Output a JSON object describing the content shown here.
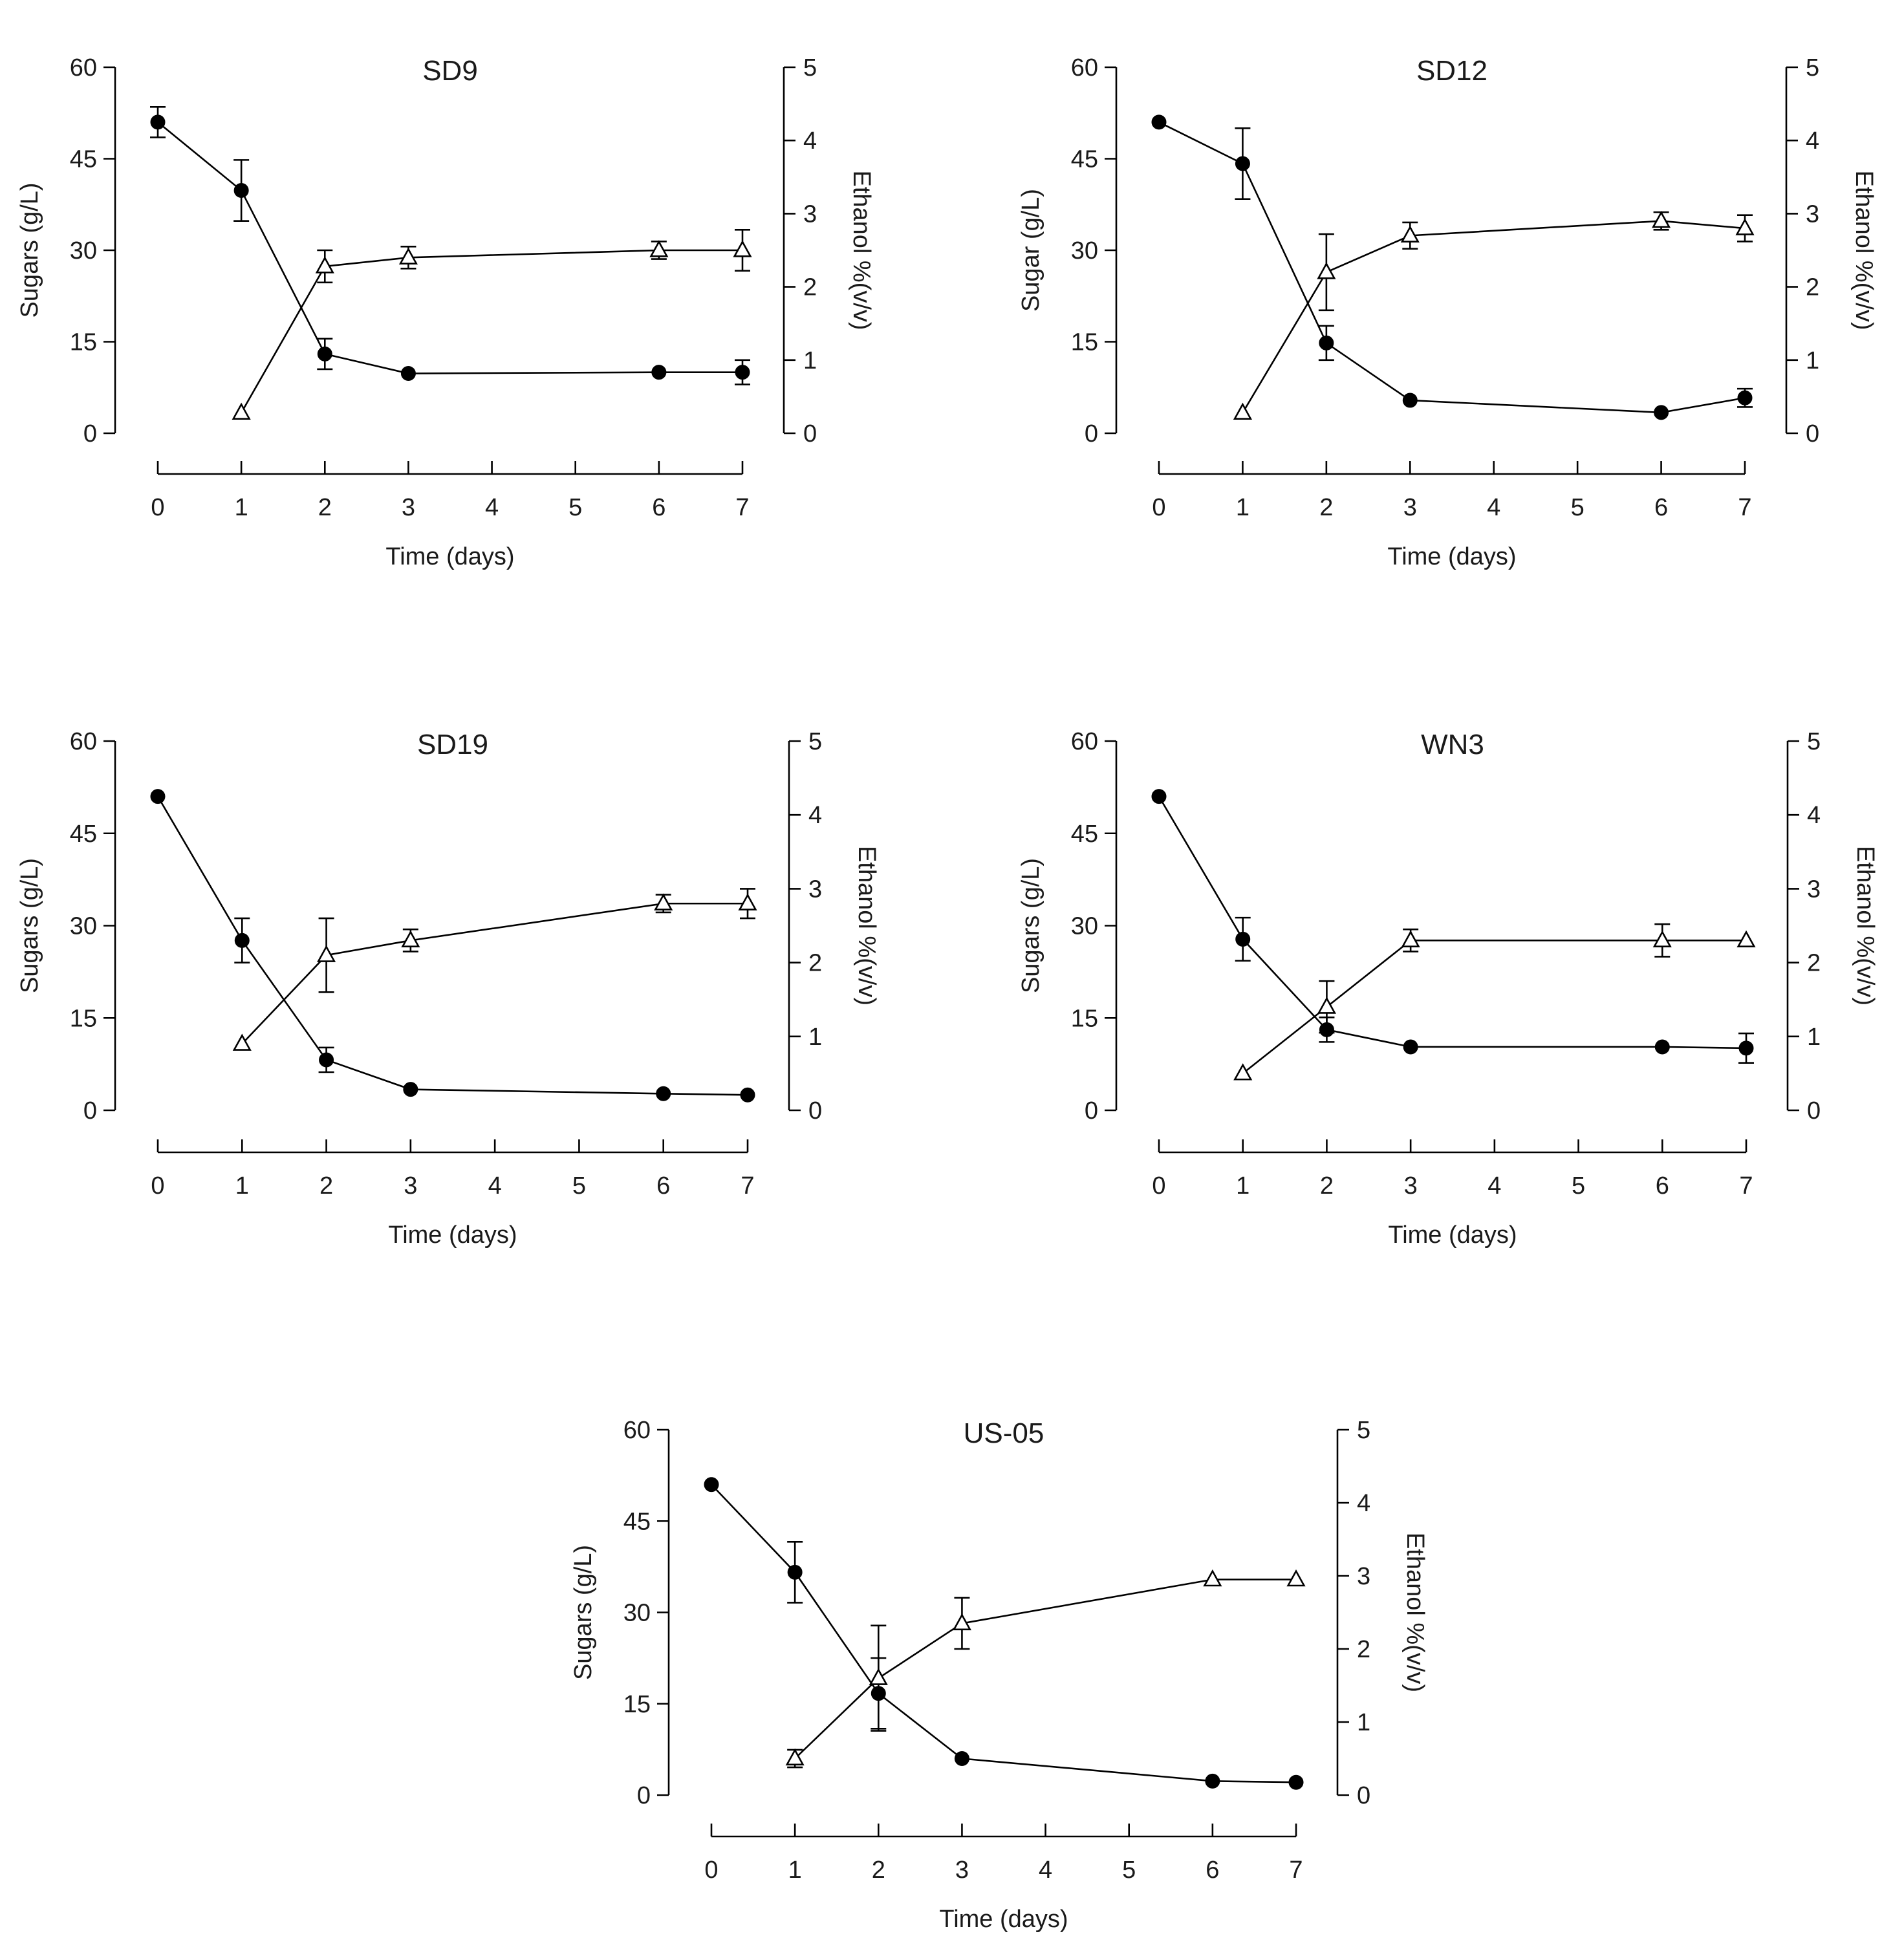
{
  "chart_data": [
    {
      "type": "line",
      "title": "SD9",
      "xlabel": "Time (days)",
      "ylabel": "Sugars (g/L)",
      "y2label": "Ethanol %(v/v)",
      "xlim": [
        0,
        7
      ],
      "ylim": [
        0,
        60
      ],
      "y2lim": [
        0,
        5
      ],
      "xticks": [
        "0",
        "1",
        "2",
        "3",
        "4",
        "5",
        "6",
        "7"
      ],
      "yticks": [
        "0",
        "15",
        "30",
        "45",
        "60"
      ],
      "y2ticks": [
        "0",
        "1",
        "2",
        "3",
        "4",
        "5"
      ],
      "grid": false,
      "series": [
        {
          "axis": "left",
          "marker": "filled-circle",
          "x": [
            0,
            1,
            2,
            3,
            6,
            7
          ],
          "y": [
            51,
            39.8,
            13,
            9.8,
            10,
            10
          ],
          "err": [
            2.5,
            5,
            2.5,
            0,
            0,
            2
          ]
        },
        {
          "axis": "right",
          "marker": "open-triangle",
          "x": [
            1,
            2,
            3,
            6,
            7
          ],
          "y": [
            0.28,
            2.28,
            2.4,
            2.5,
            2.5
          ],
          "err": [
            0,
            0.22,
            0.15,
            0.12,
            0.28
          ]
        }
      ]
    },
    {
      "type": "line",
      "title": "SD12",
      "xlabel": "Time (days)",
      "ylabel": "Sugar (g/L)",
      "y2label": "Ethanol %(v/v)",
      "xlim": [
        0,
        7
      ],
      "ylim": [
        0,
        60
      ],
      "y2lim": [
        0,
        5
      ],
      "xticks": [
        "0",
        "1",
        "2",
        "3",
        "4",
        "5",
        "6",
        "7"
      ],
      "yticks": [
        "0",
        "15",
        "30",
        "45",
        "60"
      ],
      "y2ticks": [
        "0",
        "1",
        "2",
        "3",
        "4",
        "5"
      ],
      "grid": false,
      "series": [
        {
          "axis": "left",
          "marker": "filled-circle",
          "x": [
            0,
            1,
            2,
            3,
            6,
            7
          ],
          "y": [
            51,
            44.2,
            14.8,
            5.4,
            3.4,
            5.8
          ],
          "err": [
            0,
            5.8,
            2.8,
            0,
            0,
            1.5
          ]
        },
        {
          "axis": "right",
          "marker": "open-triangle",
          "x": [
            1,
            2,
            3,
            6,
            7
          ],
          "y": [
            0.28,
            2.2,
            2.7,
            2.9,
            2.8
          ],
          "err": [
            0,
            0.52,
            0.18,
            0.12,
            0.18
          ]
        }
      ]
    },
    {
      "type": "line",
      "title": "SD19",
      "xlabel": "Time (days)",
      "ylabel": "Sugars (g/L)",
      "y2label": "Ethanol %(v/v)",
      "xlim": [
        0,
        7
      ],
      "ylim": [
        0,
        60
      ],
      "y2lim": [
        0,
        5
      ],
      "xticks": [
        "0",
        "1",
        "2",
        "3",
        "4",
        "5",
        "6",
        "7"
      ],
      "yticks": [
        "0",
        "15",
        "30",
        "45",
        "60"
      ],
      "y2ticks": [
        "0",
        "1",
        "2",
        "3",
        "4",
        "5"
      ],
      "grid": false,
      "series": [
        {
          "axis": "left",
          "marker": "filled-circle",
          "x": [
            0,
            1,
            2,
            3,
            6,
            7
          ],
          "y": [
            51,
            27.6,
            8.2,
            3.4,
            2.7,
            2.5
          ],
          "err": [
            0,
            3.6,
            2,
            0,
            0,
            0
          ]
        },
        {
          "axis": "right",
          "marker": "open-triangle",
          "x": [
            1,
            2,
            3,
            6,
            7
          ],
          "y": [
            0.9,
            2.1,
            2.3,
            2.8,
            2.8
          ],
          "err": [
            0,
            0.5,
            0.15,
            0.12,
            0.2
          ]
        }
      ]
    },
    {
      "type": "line",
      "title": "WN3",
      "xlabel": "Time (days)",
      "ylabel": "Sugars (g/L)",
      "y2label": "Ethanol %(v/v)",
      "xlim": [
        0,
        7
      ],
      "ylim": [
        0,
        60
      ],
      "y2lim": [
        0,
        5
      ],
      "xticks": [
        "0",
        "1",
        "2",
        "3",
        "4",
        "5",
        "6",
        "7"
      ],
      "yticks": [
        "0",
        "15",
        "30",
        "45",
        "60"
      ],
      "y2ticks": [
        "0",
        "1",
        "2",
        "3",
        "4",
        "5"
      ],
      "grid": false,
      "series": [
        {
          "axis": "left",
          "marker": "filled-circle",
          "x": [
            0,
            1,
            2,
            3,
            6,
            7
          ],
          "y": [
            51,
            27.8,
            13.1,
            10.3,
            10.3,
            10.1
          ],
          "err": [
            0,
            3.5,
            2,
            0,
            0,
            2.4
          ]
        },
        {
          "axis": "right",
          "marker": "open-triangle",
          "x": [
            1,
            2,
            3,
            6,
            7
          ],
          "y": [
            0.5,
            1.4,
            2.3,
            2.3,
            2.3
          ],
          "err": [
            0,
            0.35,
            0.15,
            0.22,
            0
          ]
        }
      ]
    },
    {
      "type": "line",
      "title": "US-05",
      "xlabel": "Time (days)",
      "ylabel": "Sugars (g/L)",
      "y2label": "Ethanol %(v/v)",
      "xlim": [
        0,
        7
      ],
      "ylim": [
        0,
        60
      ],
      "y2lim": [
        0,
        5
      ],
      "xticks": [
        "0",
        "1",
        "2",
        "3",
        "4",
        "5",
        "6",
        "7"
      ],
      "yticks": [
        "0",
        "15",
        "30",
        "45",
        "60"
      ],
      "y2ticks": [
        "0",
        "1",
        "2",
        "3",
        "4",
        "5"
      ],
      "grid": false,
      "series": [
        {
          "axis": "left",
          "marker": "filled-circle",
          "x": [
            0,
            1,
            2,
            3,
            6,
            7
          ],
          "y": [
            51,
            36.6,
            16.7,
            6,
            2.3,
            2.1
          ],
          "err": [
            0,
            5,
            5.8,
            0,
            0,
            0
          ]
        },
        {
          "axis": "right",
          "marker": "open-triangle",
          "x": [
            1,
            2,
            3,
            6,
            7
          ],
          "y": [
            0.5,
            1.6,
            2.35,
            2.95,
            2.95
          ],
          "err": [
            0.12,
            0.72,
            0.35,
            0,
            0
          ]
        }
      ]
    }
  ]
}
